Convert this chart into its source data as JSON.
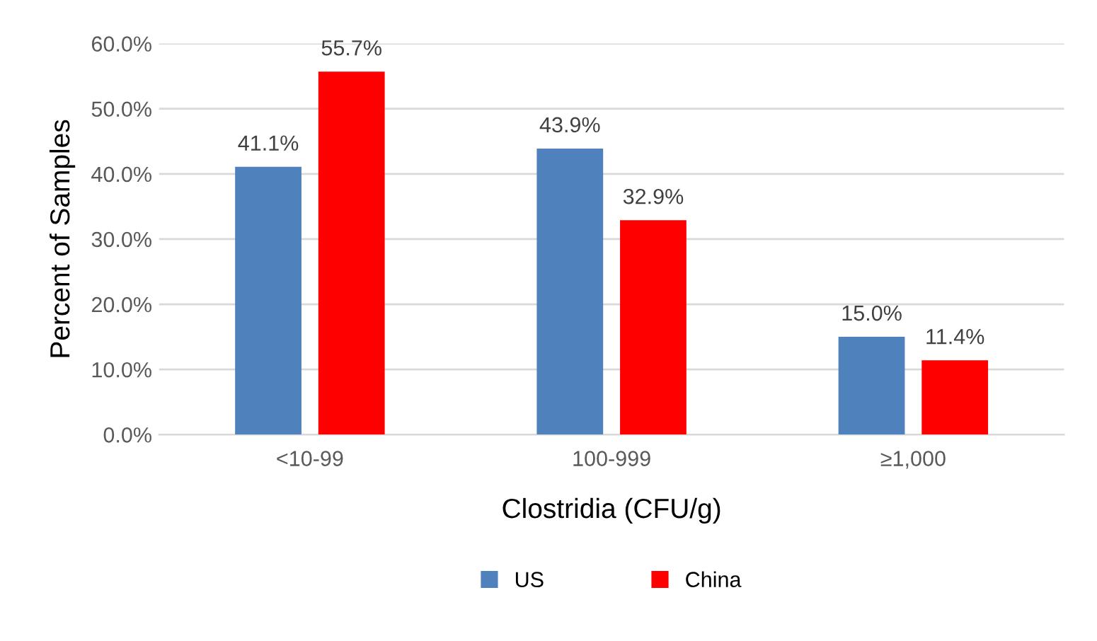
{
  "chart_data": {
    "type": "bar",
    "xlabel": "Clostridia (CFU/g)",
    "ylabel": "Percent of Samples",
    "categories": [
      "<10-99",
      "100-999",
      "≥1,000"
    ],
    "series": [
      {
        "name": "US",
        "color": "#4f81bd",
        "values": [
          41.1,
          43.9,
          15.0
        ],
        "value_labels": [
          "41.1%",
          "43.9%",
          "15.0%"
        ]
      },
      {
        "name": "China",
        "color": "#ff0000",
        "values": [
          55.7,
          32.9,
          11.4
        ],
        "value_labels": [
          "55.7%",
          "32.9%",
          "11.4%"
        ]
      }
    ],
    "ylim": [
      0,
      60
    ],
    "yticks": [
      {
        "value": 0,
        "label": "0.0%"
      },
      {
        "value": 10,
        "label": "10.0%"
      },
      {
        "value": 20,
        "label": "20.0%"
      },
      {
        "value": 30,
        "label": "30.0%"
      },
      {
        "value": 40,
        "label": "40.0%"
      },
      {
        "value": 50,
        "label": "50.0%"
      },
      {
        "value": 60,
        "label": "60.0%"
      }
    ],
    "grid": "y",
    "legend": "bottom"
  }
}
